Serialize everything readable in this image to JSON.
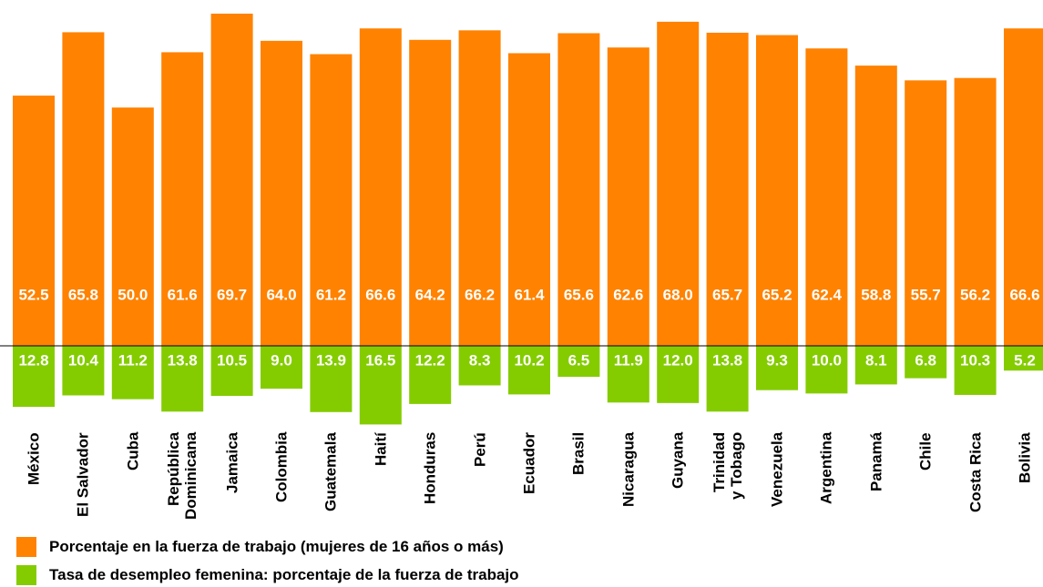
{
  "chart_data": {
    "type": "diverging-bar",
    "categories": [
      "México",
      "El Salvador",
      "Cuba",
      "República\nDominicana",
      "Jamaica",
      "Colombia",
      "Guatemala",
      "Haití",
      "Honduras",
      "Perú",
      "Ecuador",
      "Brasil",
      "Nicaragua",
      "Guyana",
      "Trinidad\ny Tobago",
      "Venezuela",
      "Argentina",
      "Panamá",
      "Chile",
      "Costa Rica",
      "Bolivia"
    ],
    "series": [
      {
        "name": "Porcentaje en la fuerza de trabajo (mujeres de 16 años o más)",
        "color": "#ff8200",
        "values": [
          52.5,
          65.8,
          50.0,
          61.6,
          69.7,
          64.0,
          61.2,
          66.6,
          64.2,
          66.2,
          61.4,
          65.6,
          62.6,
          68.0,
          65.7,
          65.2,
          62.4,
          58.8,
          55.7,
          56.2,
          66.6
        ],
        "value_labels": [
          "52.5",
          "65.8",
          "50.0",
          "61.6",
          "69.7",
          "64.0",
          "61.2",
          "66.6",
          "64.2",
          "66.2",
          "61.4",
          "65.6",
          "62.6",
          "68.0",
          "65.7",
          "65.2",
          "62.4",
          "58.8",
          "55.7",
          "56.2",
          "66.6"
        ]
      },
      {
        "name": "Tasa de desempleo femenina: porcentaje de la fuerza de trabajo",
        "color": "#84cc00",
        "values": [
          12.8,
          10.4,
          11.2,
          13.8,
          10.5,
          9.0,
          13.9,
          16.5,
          12.2,
          8.3,
          10.2,
          6.5,
          11.9,
          12.0,
          13.8,
          9.3,
          10.0,
          8.1,
          6.8,
          10.3,
          5.2
        ],
        "value_labels": [
          "12.8",
          "10.4",
          "11.2",
          "13.8",
          "10.5",
          "9.0",
          "13.9",
          "16.5",
          "12.2",
          "8.3",
          "10.2",
          "6.5",
          "11.9",
          "12.0",
          "13.8",
          "9.3",
          "10.0",
          "8.1",
          "6.8",
          "10.3",
          "5.2"
        ]
      }
    ]
  }
}
